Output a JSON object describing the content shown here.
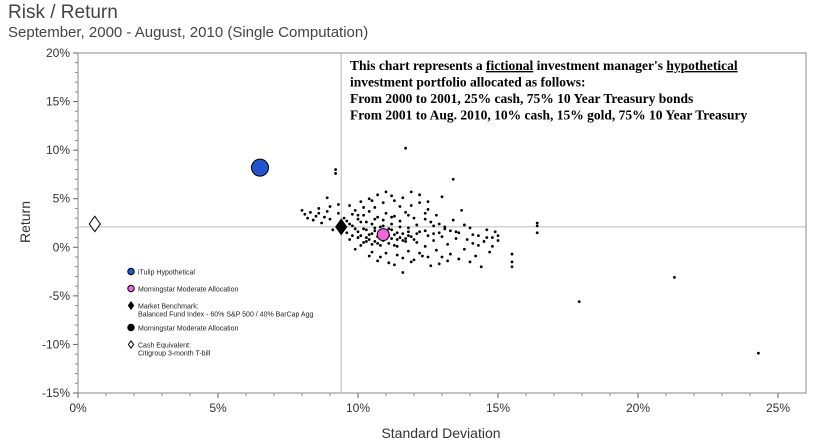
{
  "header": {
    "title": "Risk / Return",
    "subtitle": "September, 2000 - August, 2010 (Single Computation)"
  },
  "note": {
    "lines": [
      [
        {
          "t": "This chart represents a "
        },
        {
          "t": "fictional",
          "u": true
        },
        {
          "t": " investment manager's "
        },
        {
          "t": "hypothetical",
          "u": true
        }
      ],
      [
        {
          "t": "investment portfolio allocated as follows:"
        }
      ],
      [
        {
          "t": "From 2000 to 2001, 25% cash, 75% 10 Year Treasury bonds"
        }
      ],
      [
        {
          "t": "From 2001 to Aug. 2010, 10% cash, 15% gold, 75% 10 Year Treasury"
        }
      ]
    ]
  },
  "legend": [
    {
      "lines": [
        "iTulip Hypothetical"
      ],
      "marker": "circle",
      "color": "#2255cc"
    },
    {
      "lines": [
        "Morningstar Moderate Allocation"
      ],
      "marker": "circle",
      "color": "#ee66dd"
    },
    {
      "lines": [
        "Market Benchmark:",
        "Balanced Fund Index - 60% S&P 500 / 40% BarCap Agg"
      ],
      "marker": "diamond",
      "color": "#000000"
    },
    {
      "lines": [
        "Morningstar Moderate Allocation"
      ],
      "marker": "circle",
      "color": "#000000"
    },
    {
      "lines": [
        "Cash Equivalent:",
        "Citigroup 3-month T-bill"
      ],
      "marker": "diamond-open",
      "color": "#ffffff"
    }
  ],
  "chart_data": {
    "type": "scatter",
    "xlabel": "Standard Deviation",
    "ylabel": "Return",
    "xlim": [
      0,
      26
    ],
    "ylim": [
      -15,
      20
    ],
    "xticks": [
      0,
      5,
      10,
      15,
      20,
      25
    ],
    "yticks": [
      -15,
      -10,
      -5,
      0,
      5,
      10,
      15,
      20
    ],
    "tick_suffix": "%",
    "reference_lines": {
      "x": 9.4,
      "y": 2.1
    },
    "highlighted_points": [
      {
        "series": "iTulip Hypothetical",
        "x": 6.5,
        "y": 8.2,
        "marker": "circle",
        "color": "#2255cc"
      },
      {
        "series": "Cash Equivalent: Citigroup 3-month T-bill",
        "x": 0.6,
        "y": 2.4,
        "marker": "diamond-open",
        "color": "#ffffff"
      },
      {
        "series": "Market Benchmark: Balanced Fund Index - 60% S&P 500 / 40% BarCap Agg",
        "x": 9.4,
        "y": 2.1,
        "marker": "diamond",
        "color": "#000000"
      },
      {
        "series": "Morningstar Moderate Allocation",
        "x": 10.9,
        "y": 1.3,
        "marker": "circle",
        "color": "#ee66dd"
      }
    ],
    "scatter_points": [
      [
        8.1,
        3.4
      ],
      [
        8.2,
        3.0
      ],
      [
        8.3,
        3.6
      ],
      [
        8.4,
        2.8
      ],
      [
        8.5,
        3.2
      ],
      [
        8.6,
        4.0
      ],
      [
        8.7,
        2.5
      ],
      [
        8.8,
        3.1
      ],
      [
        8.9,
        5.1
      ],
      [
        8.9,
        3.7
      ],
      [
        9.0,
        2.9
      ],
      [
        9.1,
        1.8
      ],
      [
        9.2,
        8.0
      ],
      [
        9.2,
        7.6
      ],
      [
        9.3,
        4.4
      ],
      [
        9.3,
        3.5
      ],
      [
        9.4,
        2.6
      ],
      [
        9.5,
        3.0
      ],
      [
        9.6,
        1.5
      ],
      [
        9.7,
        4.3
      ],
      [
        9.7,
        0.8
      ],
      [
        9.8,
        2.2
      ],
      [
        9.8,
        1.2
      ],
      [
        9.9,
        3.8
      ],
      [
        9.9,
        -0.2
      ],
      [
        10.0,
        2.9
      ],
      [
        10.0,
        1.0
      ],
      [
        10.1,
        4.7
      ],
      [
        10.1,
        0.2
      ],
      [
        10.2,
        3.3
      ],
      [
        10.2,
        1.9
      ],
      [
        10.3,
        2.6
      ],
      [
        10.3,
        0.6
      ],
      [
        10.4,
        5.0
      ],
      [
        10.4,
        3.7
      ],
      [
        10.4,
        1.3
      ],
      [
        10.5,
        2.4
      ],
      [
        10.5,
        -0.5
      ],
      [
        10.6,
        4.1
      ],
      [
        10.6,
        1.7
      ],
      [
        10.7,
        3.1
      ],
      [
        10.7,
        0.4
      ],
      [
        10.8,
        2.1
      ],
      [
        10.8,
        -1.0
      ],
      [
        10.9,
        4.6
      ],
      [
        10.9,
        2.8
      ],
      [
        11.0,
        3.5
      ],
      [
        11.0,
        0.9
      ],
      [
        11.1,
        1.9
      ],
      [
        11.1,
        -1.6
      ],
      [
        11.2,
        5.3
      ],
      [
        11.2,
        2.4
      ],
      [
        11.3,
        3.2
      ],
      [
        11.3,
        0.2
      ],
      [
        11.4,
        1.5
      ],
      [
        11.4,
        -0.8
      ],
      [
        11.5,
        4.2
      ],
      [
        11.5,
        2.7
      ],
      [
        11.6,
        0.7
      ],
      [
        11.6,
        -2.6
      ],
      [
        11.7,
        10.2
      ],
      [
        11.7,
        3.6
      ],
      [
        11.8,
        2.0
      ],
      [
        11.8,
        -0.4
      ],
      [
        11.9,
        5.7
      ],
      [
        11.9,
        1.1
      ],
      [
        12.0,
        3.0
      ],
      [
        12.0,
        -1.3
      ],
      [
        12.1,
        2.3
      ],
      [
        12.1,
        0.5
      ],
      [
        12.2,
        4.6
      ],
      [
        12.2,
        1.6
      ],
      [
        12.3,
        -0.9
      ],
      [
        12.4,
        2.9
      ],
      [
        12.4,
        0.1
      ],
      [
        12.5,
        3.9
      ],
      [
        12.5,
        1.2
      ],
      [
        12.6,
        -1.9
      ],
      [
        12.7,
        2.2
      ],
      [
        12.7,
        0.7
      ],
      [
        12.8,
        3.3
      ],
      [
        12.8,
        -0.3
      ],
      [
        12.9,
        1.5
      ],
      [
        13.0,
        5.2
      ],
      [
        13.0,
        -1.0
      ],
      [
        13.1,
        2.1
      ],
      [
        13.2,
        0.3
      ],
      [
        13.3,
        1.7
      ],
      [
        13.3,
        -0.7
      ],
      [
        13.4,
        7.0
      ],
      [
        13.4,
        2.8
      ],
      [
        13.5,
        0.9
      ],
      [
        13.6,
        -1.2
      ],
      [
        13.6,
        1.5
      ],
      [
        13.7,
        3.8
      ],
      [
        13.8,
        -0.2
      ],
      [
        13.9,
        0.8
      ],
      [
        14.0,
        2.0
      ],
      [
        14.0,
        -1.5
      ],
      [
        14.1,
        0.4
      ],
      [
        14.2,
        -0.9
      ],
      [
        14.3,
        1.2
      ],
      [
        14.4,
        -2.0
      ],
      [
        14.5,
        0.6
      ],
      [
        14.6,
        1.8
      ],
      [
        14.7,
        -0.5
      ],
      [
        14.8,
        1.0
      ],
      [
        14.9,
        1.6
      ],
      [
        15.0,
        0.7
      ],
      [
        15.5,
        -0.7
      ],
      [
        15.5,
        -1.5
      ],
      [
        15.5,
        -2.0
      ],
      [
        16.4,
        2.5
      ],
      [
        16.4,
        2.2
      ],
      [
        16.4,
        1.5
      ],
      [
        17.9,
        -5.6
      ],
      [
        21.3,
        -3.1
      ],
      [
        24.3,
        -10.9
      ],
      [
        10.1,
        1.2
      ],
      [
        10.3,
        1.0
      ],
      [
        10.4,
        0.8
      ],
      [
        10.5,
        1.4
      ],
      [
        10.6,
        0.6
      ],
      [
        10.7,
        1.1
      ],
      [
        10.8,
        0.9
      ],
      [
        10.9,
        0.7
      ],
      [
        11.0,
        1.5
      ],
      [
        11.1,
        1.2
      ],
      [
        11.2,
        0.9
      ],
      [
        11.3,
        1.3
      ],
      [
        11.4,
        0.8
      ],
      [
        11.5,
        1.0
      ],
      [
        11.6,
        1.4
      ],
      [
        11.7,
        0.9
      ],
      [
        11.8,
        1.2
      ],
      [
        10.2,
        0.5
      ],
      [
        10.5,
        0.3
      ],
      [
        10.8,
        0.2
      ],
      [
        11.1,
        0.4
      ],
      [
        11.4,
        0.1
      ],
      [
        11.7,
        0.6
      ],
      [
        12.0,
        0.8
      ],
      [
        10.0,
        1.6
      ],
      [
        10.3,
        1.8
      ],
      [
        10.6,
        2.0
      ],
      [
        10.9,
        2.2
      ],
      [
        11.2,
        1.8
      ],
      [
        11.5,
        2.1
      ],
      [
        11.8,
        1.6
      ],
      [
        12.1,
        1.4
      ],
      [
        12.4,
        1.7
      ],
      [
        12.7,
        1.4
      ],
      [
        13.0,
        1.1
      ],
      [
        9.9,
        1.9
      ],
      [
        9.7,
        2.4
      ],
      [
        9.6,
        2.7
      ],
      [
        9.5,
        1.9
      ],
      [
        9.4,
        1.7
      ],
      [
        10.0,
        3.3
      ],
      [
        10.2,
        4.1
      ],
      [
        10.5,
        4.8
      ],
      [
        10.7,
        5.4
      ],
      [
        11.0,
        5.7
      ],
      [
        11.3,
        4.8
      ],
      [
        11.6,
        5.1
      ],
      [
        11.9,
        4.3
      ],
      [
        12.2,
        5.4
      ],
      [
        12.5,
        4.7
      ],
      [
        10.4,
        -0.9
      ],
      [
        10.7,
        -1.4
      ],
      [
        11.0,
        -0.6
      ],
      [
        11.3,
        -1.8
      ],
      [
        11.6,
        -1.1
      ],
      [
        11.9,
        -1.5
      ],
      [
        12.2,
        -0.6
      ],
      [
        12.5,
        -1.0
      ],
      [
        12.9,
        -1.7
      ],
      [
        13.2,
        -1.4
      ],
      [
        8.0,
        3.8
      ],
      [
        8.6,
        3.5
      ],
      [
        9.0,
        4.2
      ],
      [
        9.3,
        2.2
      ],
      [
        9.8,
        3.4
      ],
      [
        10.1,
        2.6
      ],
      [
        10.6,
        2.9
      ],
      [
        11.2,
        3.1
      ],
      [
        11.8,
        3.3
      ],
      [
        12.4,
        3.5
      ],
      [
        12.6,
        2.6
      ],
      [
        12.9,
        2.4
      ],
      [
        13.1,
        1.9
      ],
      [
        13.5,
        1.6
      ],
      [
        14.1,
        1.3
      ],
      [
        14.6,
        1.0
      ],
      [
        15.0,
        1.2
      ],
      [
        13.8,
        2.3
      ],
      [
        14.3,
        0.2
      ],
      [
        14.8,
        0.1
      ]
    ]
  }
}
